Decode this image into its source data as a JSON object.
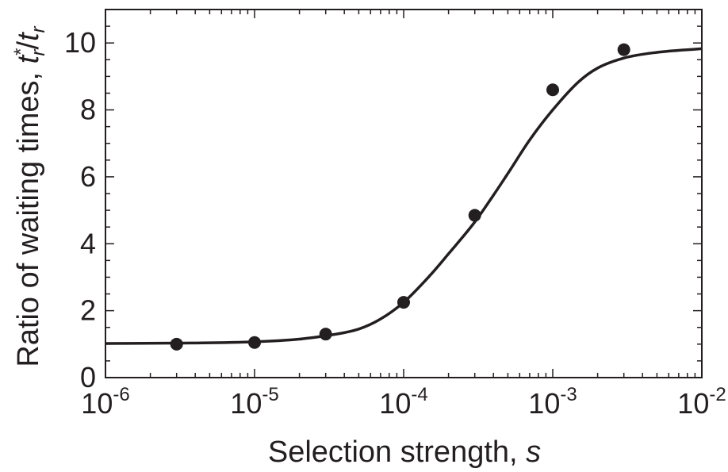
{
  "chart_data": {
    "type": "scatter",
    "xscale": "log",
    "xlim": [
      1e-06,
      0.01
    ],
    "ylim": [
      0,
      11
    ],
    "grid": false,
    "xlabel": {
      "text": "Selection strength, ",
      "var": "s"
    },
    "ylabel": {
      "text": "Ratio of waiting times, ",
      "var_num": "t",
      "var_num_sup": "*",
      "var_num_sub": "r",
      "slash": "/",
      "var_den": "t",
      "var_den_sub": "r"
    },
    "x_ticks": [
      {
        "value": 1e-06,
        "base": "10",
        "exp": "-6"
      },
      {
        "value": 1e-05,
        "base": "10",
        "exp": "-5"
      },
      {
        "value": 0.0001,
        "base": "10",
        "exp": "-4"
      },
      {
        "value": 0.001,
        "base": "10",
        "exp": "-3"
      },
      {
        "value": 0.01,
        "base": "10",
        "exp": "-2"
      }
    ],
    "y_ticks": [
      {
        "value": 0,
        "label": "0"
      },
      {
        "value": 2,
        "label": "2"
      },
      {
        "value": 4,
        "label": "4"
      },
      {
        "value": 6,
        "label": "6"
      },
      {
        "value": 8,
        "label": "8"
      },
      {
        "value": 10,
        "label": "10"
      }
    ],
    "series": [
      {
        "type": "scatter",
        "x": [
          3e-06,
          1e-05,
          3e-05,
          0.0001,
          0.0003,
          0.001,
          0.003
        ],
        "y": [
          1.0,
          1.05,
          1.3,
          2.25,
          4.85,
          8.6,
          9.8
        ]
      },
      {
        "type": "line",
        "x": [
          1e-06,
          3e-06,
          1e-05,
          2e-05,
          3e-05,
          5e-05,
          7e-05,
          0.0001,
          0.00015,
          0.0002,
          0.0003,
          0.0004,
          0.0005,
          0.0007,
          0.001,
          0.0015,
          0.002,
          0.003,
          0.005,
          0.01
        ],
        "y": [
          1.02,
          1.03,
          1.07,
          1.15,
          1.25,
          1.45,
          1.75,
          2.25,
          3.05,
          3.7,
          4.65,
          5.45,
          6.1,
          7.1,
          8.0,
          8.85,
          9.25,
          9.55,
          9.72,
          9.83
        ]
      }
    ],
    "colors": {
      "ink": "#231f20"
    }
  }
}
